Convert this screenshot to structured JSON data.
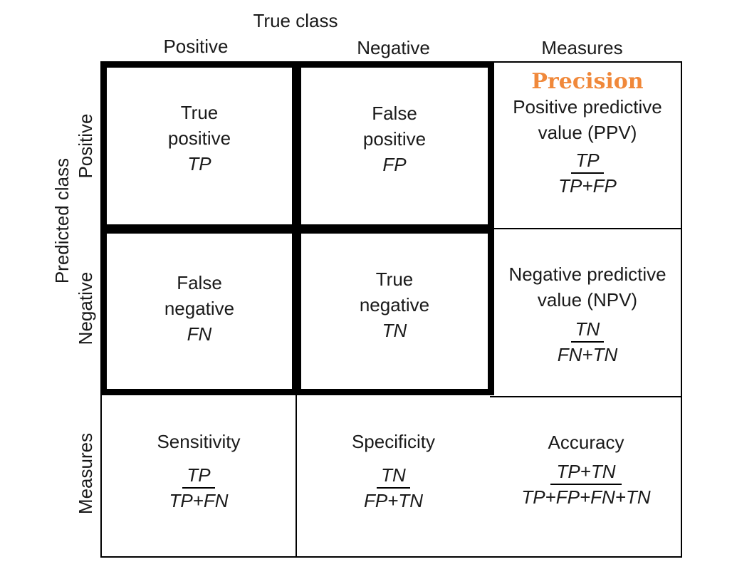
{
  "header": {
    "true_class": "True class",
    "positive": "Positive",
    "negative": "Negative",
    "measures": "Measures"
  },
  "side": {
    "predicted_class": "Predicted class",
    "positive": "Positive",
    "negative": "Negative",
    "measures": "Measures"
  },
  "cells": {
    "tp": {
      "line1": "True",
      "line2": "positive",
      "abbr": "TP"
    },
    "fp": {
      "line1": "False",
      "line2": "positive",
      "abbr": "FP"
    },
    "fn": {
      "line1": "False",
      "line2": "negative",
      "abbr": "FN"
    },
    "tn": {
      "line1": "True",
      "line2": "negative",
      "abbr": "TN"
    }
  },
  "ppv": {
    "highlight": "Precision",
    "line1": "Positive predictive",
    "line2": "value (PPV)",
    "num": "TP",
    "den": "TP+FP",
    "highlight_color": "#f0883a"
  },
  "npv": {
    "line1": "Negative predictive",
    "line2": "value (NPV)",
    "num": "TN",
    "den": "FN+TN"
  },
  "sensitivity": {
    "label": "Sensitivity",
    "num": "TP",
    "den": "TP+FN"
  },
  "specificity": {
    "label": "Specificity",
    "num": "TN",
    "den": "FP+TN"
  },
  "accuracy": {
    "label": "Accuracy",
    "num": "TP+TN",
    "den": "TP+FP+FN+TN"
  }
}
